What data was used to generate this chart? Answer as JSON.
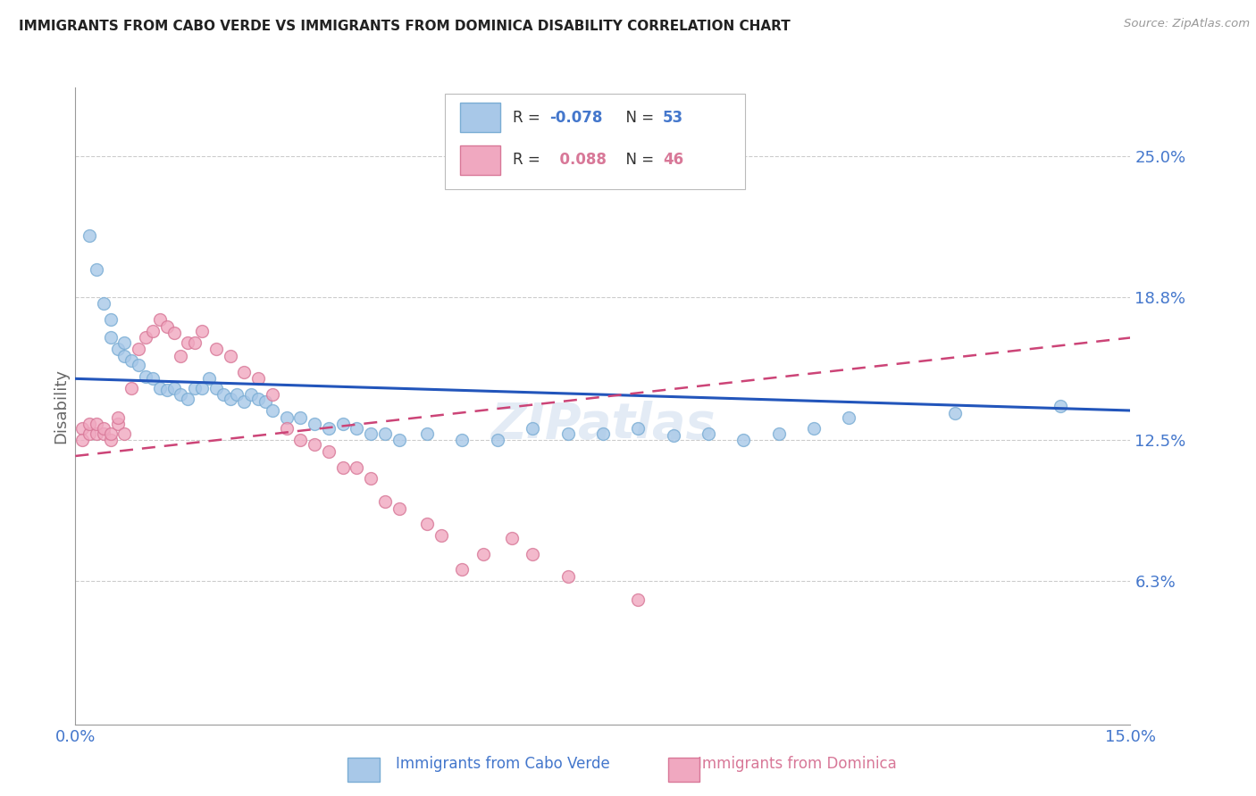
{
  "title": "IMMIGRANTS FROM CABO VERDE VS IMMIGRANTS FROM DOMINICA DISABILITY CORRELATION CHART",
  "source": "Source: ZipAtlas.com",
  "ylabel": "Disability",
  "x_min": 0.0,
  "x_max": 0.15,
  "y_min": 0.0,
  "y_max": 0.28,
  "right_yticks": [
    0.063,
    0.125,
    0.188,
    0.25
  ],
  "right_yticklabels": [
    "6.3%",
    "12.5%",
    "18.8%",
    "25.0%"
  ],
  "hgrid_values": [
    0.063,
    0.125,
    0.188,
    0.25
  ],
  "cabo_verde_color": "#a8c8e8",
  "cabo_verde_edge": "#7aadd4",
  "dominica_color": "#f0a8c0",
  "dominica_edge": "#d87898",
  "cabo_verde_R": -0.078,
  "cabo_verde_N": 53,
  "dominica_R": 0.088,
  "dominica_N": 46,
  "cabo_verde_x": [
    0.002,
    0.003,
    0.004,
    0.005,
    0.005,
    0.006,
    0.007,
    0.007,
    0.008,
    0.009,
    0.01,
    0.011,
    0.012,
    0.013,
    0.014,
    0.015,
    0.016,
    0.017,
    0.018,
    0.019,
    0.02,
    0.021,
    0.022,
    0.023,
    0.024,
    0.025,
    0.026,
    0.027,
    0.028,
    0.03,
    0.032,
    0.034,
    0.036,
    0.038,
    0.04,
    0.042,
    0.044,
    0.046,
    0.05,
    0.055,
    0.06,
    0.065,
    0.07,
    0.075,
    0.08,
    0.085,
    0.09,
    0.095,
    0.1,
    0.105,
    0.11,
    0.125,
    0.14
  ],
  "cabo_verde_y": [
    0.215,
    0.2,
    0.185,
    0.178,
    0.17,
    0.165,
    0.162,
    0.168,
    0.16,
    0.158,
    0.153,
    0.152,
    0.148,
    0.147,
    0.148,
    0.145,
    0.143,
    0.148,
    0.148,
    0.152,
    0.148,
    0.145,
    0.143,
    0.145,
    0.142,
    0.145,
    0.143,
    0.142,
    0.138,
    0.135,
    0.135,
    0.132,
    0.13,
    0.132,
    0.13,
    0.128,
    0.128,
    0.125,
    0.128,
    0.125,
    0.125,
    0.13,
    0.128,
    0.128,
    0.13,
    0.127,
    0.128,
    0.125,
    0.128,
    0.13,
    0.135,
    0.137,
    0.14
  ],
  "dominica_x": [
    0.001,
    0.001,
    0.002,
    0.002,
    0.003,
    0.003,
    0.004,
    0.004,
    0.005,
    0.005,
    0.006,
    0.006,
    0.007,
    0.008,
    0.009,
    0.01,
    0.011,
    0.012,
    0.013,
    0.014,
    0.015,
    0.016,
    0.017,
    0.018,
    0.02,
    0.022,
    0.024,
    0.026,
    0.028,
    0.03,
    0.032,
    0.034,
    0.036,
    0.038,
    0.04,
    0.042,
    0.044,
    0.046,
    0.05,
    0.052,
    0.055,
    0.058,
    0.062,
    0.065,
    0.07,
    0.08
  ],
  "dominica_y": [
    0.13,
    0.125,
    0.128,
    0.132,
    0.128,
    0.132,
    0.128,
    0.13,
    0.125,
    0.128,
    0.132,
    0.135,
    0.128,
    0.148,
    0.165,
    0.17,
    0.173,
    0.178,
    0.175,
    0.172,
    0.162,
    0.168,
    0.168,
    0.173,
    0.165,
    0.162,
    0.155,
    0.152,
    0.145,
    0.13,
    0.125,
    0.123,
    0.12,
    0.113,
    0.113,
    0.108,
    0.098,
    0.095,
    0.088,
    0.083,
    0.068,
    0.075,
    0.082,
    0.075,
    0.065,
    0.055
  ],
  "marker_size": 100,
  "background_color": "#ffffff",
  "title_color": "#333333",
  "axis_color": "#4477cc",
  "watermark": "ZIPatlas"
}
